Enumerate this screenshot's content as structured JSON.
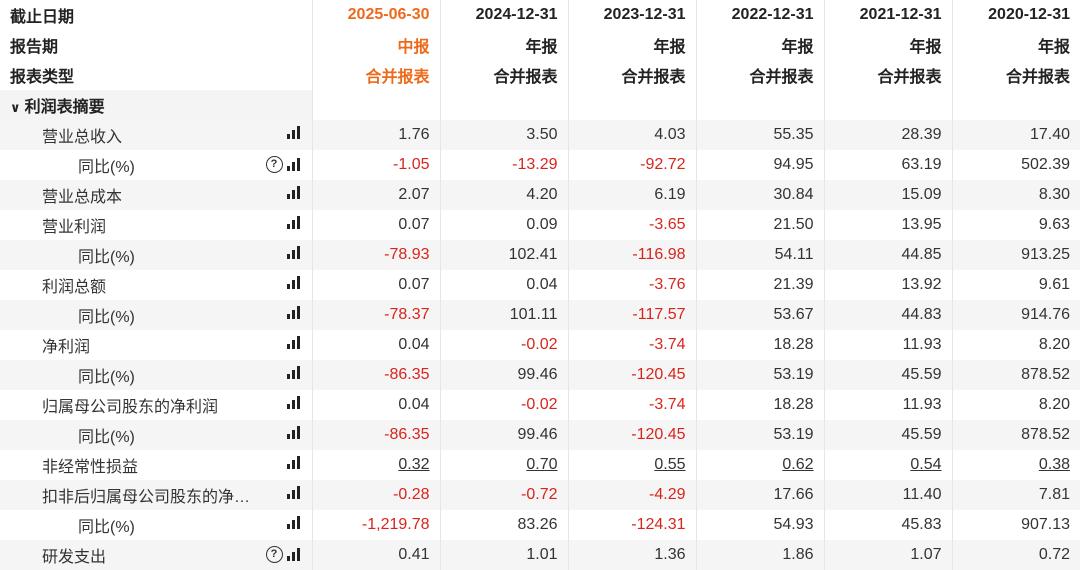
{
  "header_rows": [
    {
      "label": "截止日期",
      "values": [
        "2025-06-30",
        "2024-12-31",
        "2023-12-31",
        "2022-12-31",
        "2021-12-31",
        "2020-12-31"
      ]
    },
    {
      "label": "报告期",
      "values": [
        "中报",
        "年报",
        "年报",
        "年报",
        "年报",
        "年报"
      ]
    },
    {
      "label": "报表类型",
      "values": [
        "合并报表",
        "合并报表",
        "合并报表",
        "合并报表",
        "合并报表",
        "合并报表"
      ]
    }
  ],
  "section": {
    "label": "利润表摘要",
    "chevron_icon": "chevron-down-icon"
  },
  "rows": [
    {
      "name": "营业总收入",
      "level": 1,
      "help": false,
      "values": [
        "1.76",
        "3.50",
        "4.03",
        "55.35",
        "28.39",
        "17.40"
      ]
    },
    {
      "name": "同比(%)",
      "level": 2,
      "help": true,
      "values": [
        "-1.05",
        "-13.29",
        "-92.72",
        "94.95",
        "63.19",
        "502.39"
      ]
    },
    {
      "name": "营业总成本",
      "level": 1,
      "help": false,
      "values": [
        "2.07",
        "4.20",
        "6.19",
        "30.84",
        "15.09",
        "8.30"
      ]
    },
    {
      "name": "营业利润",
      "level": 1,
      "help": false,
      "values": [
        "0.07",
        "0.09",
        "-3.65",
        "21.50",
        "13.95",
        "9.63"
      ]
    },
    {
      "name": "同比(%)",
      "level": 2,
      "help": false,
      "values": [
        "-78.93",
        "102.41",
        "-116.98",
        "54.11",
        "44.85",
        "913.25"
      ]
    },
    {
      "name": "利润总额",
      "level": 1,
      "help": false,
      "values": [
        "0.07",
        "0.04",
        "-3.76",
        "21.39",
        "13.92",
        "9.61"
      ]
    },
    {
      "name": "同比(%)",
      "level": 2,
      "help": false,
      "values": [
        "-78.37",
        "101.11",
        "-117.57",
        "53.67",
        "44.83",
        "914.76"
      ]
    },
    {
      "name": "净利润",
      "level": 1,
      "help": false,
      "values": [
        "0.04",
        "-0.02",
        "-3.74",
        "18.28",
        "11.93",
        "8.20"
      ]
    },
    {
      "name": "同比(%)",
      "level": 2,
      "help": false,
      "values": [
        "-86.35",
        "99.46",
        "-120.45",
        "53.19",
        "45.59",
        "878.52"
      ]
    },
    {
      "name": "归属母公司股东的净利润",
      "level": 1,
      "help": false,
      "values": [
        "0.04",
        "-0.02",
        "-3.74",
        "18.28",
        "11.93",
        "8.20"
      ]
    },
    {
      "name": "同比(%)",
      "level": 2,
      "help": false,
      "values": [
        "-86.35",
        "99.46",
        "-120.45",
        "53.19",
        "45.59",
        "878.52"
      ]
    },
    {
      "name": "非经常性损益",
      "level": 1,
      "help": false,
      "underline": true,
      "values": [
        "0.32",
        "0.70",
        "0.55",
        "0.62",
        "0.54",
        "0.38"
      ]
    },
    {
      "name": "扣非后归属母公司股东的净…",
      "level": 1,
      "help": false,
      "values": [
        "-0.28",
        "-0.72",
        "-4.29",
        "17.66",
        "11.40",
        "7.81"
      ]
    },
    {
      "name": "同比(%)",
      "level": 2,
      "help": false,
      "values": [
        "-1,219.78",
        "83.26",
        "-124.31",
        "54.93",
        "45.83",
        "907.13"
      ]
    },
    {
      "name": "研发支出",
      "level": 1,
      "help": true,
      "values": [
        "0.41",
        "1.01",
        "1.36",
        "1.86",
        "1.07",
        "0.72"
      ]
    }
  ],
  "colors": {
    "accent": "#ee6a1b",
    "negative": "#d9241c",
    "stripe": "#f5f5f5"
  },
  "icons": {
    "chart": "bar-chart-icon",
    "help": "question-circle-icon"
  }
}
